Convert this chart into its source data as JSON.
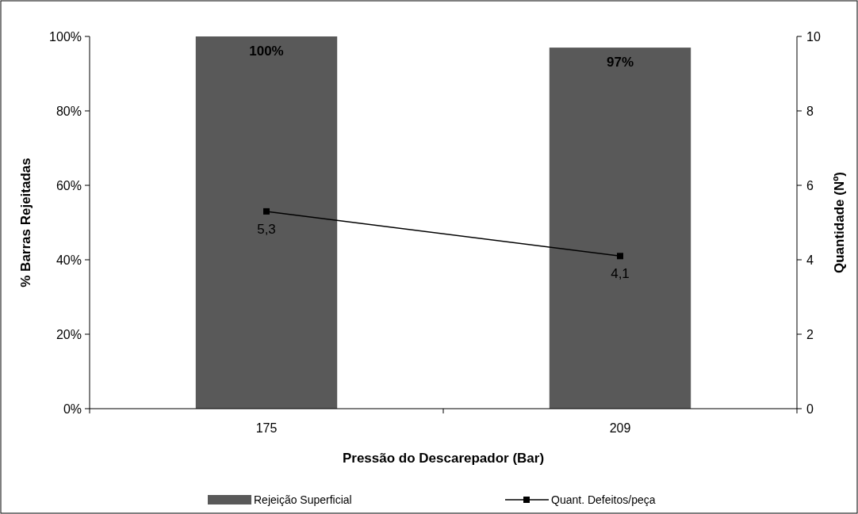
{
  "chart_data": {
    "type": "bar",
    "xlabel": "Pressão do Descarepador (Bar)",
    "ylabel": "% Barras Rejeitadas",
    "y2label": "Quantidade (Nº)",
    "categories": [
      "175",
      "209"
    ],
    "series": [
      {
        "name": "Rejeição Superficial",
        "color": "#595959",
        "values": [
          100,
          97
        ],
        "value_labels": [
          "100%",
          "97%"
        ]
      },
      {
        "name": "Quant. Defeitos/peça",
        "type": "line",
        "axis": "y2",
        "color": "#000000",
        "values": [
          5.3,
          4.1
        ],
        "value_labels": [
          "5,3",
          "4,1"
        ]
      }
    ],
    "ylim": [
      0,
      100
    ],
    "yticks": [
      {
        "value": 0,
        "label": "0%"
      },
      {
        "value": 20,
        "label": "20%"
      },
      {
        "value": 40,
        "label": "40%"
      },
      {
        "value": 60,
        "label": "60%"
      },
      {
        "value": 80,
        "label": "80%"
      },
      {
        "value": 100,
        "label": "100%"
      }
    ],
    "y2lim": [
      0,
      10
    ],
    "y2ticks": [
      0,
      2,
      4,
      6,
      8,
      10
    ],
    "marker": "square",
    "legend": "bottom",
    "grid": false
  }
}
